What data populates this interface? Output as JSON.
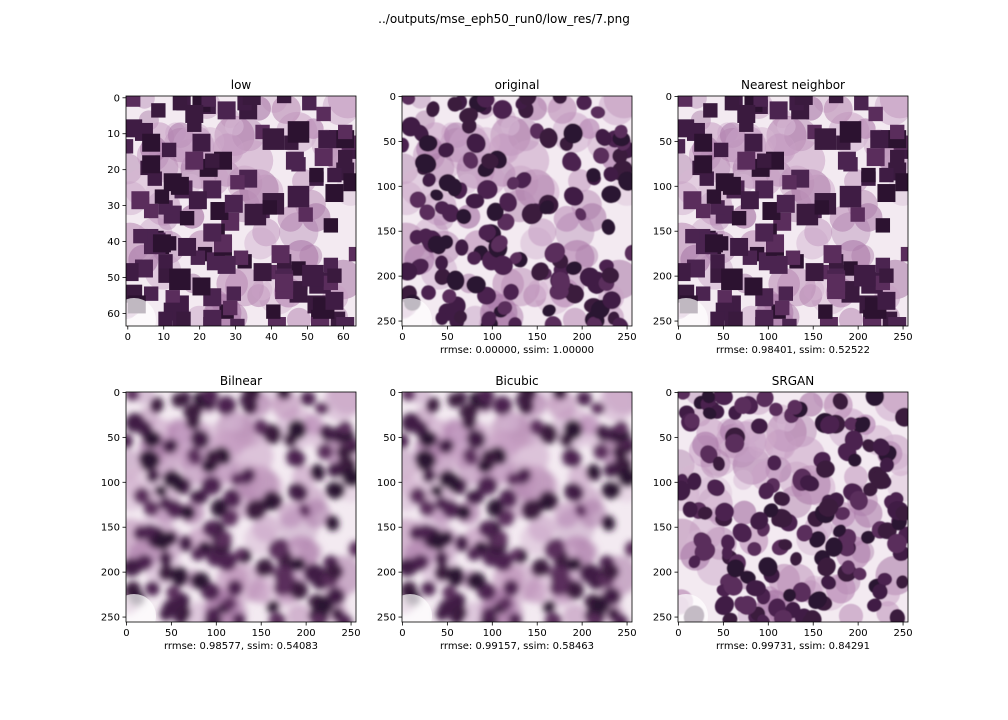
{
  "figure": {
    "suptitle": "../outputs/mse_eph50_run0/low_res/7.png"
  },
  "palette": {
    "background": "#f3eaf1",
    "nuclei": [
      "#2c1230",
      "#3a1a3e",
      "#4b2450",
      "#5a2d5c",
      "#3f1c44"
    ],
    "cytoplasm": [
      "#b889b4",
      "#c7a0c4",
      "#a877a6",
      "#d5b6d2"
    ],
    "edge_white": "#ffffff"
  },
  "panels": [
    {
      "title": "low",
      "caption": "",
      "xticks": [
        "0",
        "10",
        "20",
        "30",
        "40",
        "50",
        "60"
      ],
      "yticks": [
        "0",
        "10",
        "20",
        "30",
        "40",
        "50",
        "60"
      ],
      "axis_max": 64,
      "appearance": "pixelated"
    },
    {
      "title": "original",
      "caption": "rrmse: 0.00000, ssim: 1.00000",
      "xticks": [
        "0",
        "50",
        "100",
        "150",
        "200",
        "250"
      ],
      "yticks": [
        "0",
        "50",
        "100",
        "150",
        "200",
        "250"
      ],
      "axis_max": 256,
      "appearance": "sharp"
    },
    {
      "title": "Nearest neighbor",
      "caption": "rrmse: 0.98401, ssim: 0.52522",
      "xticks": [
        "0",
        "50",
        "100",
        "150",
        "200",
        "250"
      ],
      "yticks": [
        "0",
        "50",
        "100",
        "150",
        "200",
        "250"
      ],
      "axis_max": 256,
      "appearance": "pixelated"
    },
    {
      "title": "Bilnear",
      "caption": "rrmse: 0.98577, ssim: 0.54083",
      "xticks": [
        "0",
        "50",
        "100",
        "150",
        "200",
        "250"
      ],
      "yticks": [
        "0",
        "50",
        "100",
        "150",
        "200",
        "250"
      ],
      "axis_max": 256,
      "appearance": "blurred"
    },
    {
      "title": "Bicubic",
      "caption": "rrmse: 0.99157, ssim: 0.58463",
      "xticks": [
        "0",
        "50",
        "100",
        "150",
        "200",
        "250"
      ],
      "yticks": [
        "0",
        "50",
        "100",
        "150",
        "200",
        "250"
      ],
      "axis_max": 256,
      "appearance": "blurred"
    },
    {
      "title": "SRGAN",
      "caption": "rrmse: 0.99731, ssim: 0.84291",
      "xticks": [
        "0",
        "50",
        "100",
        "150",
        "200",
        "250"
      ],
      "yticks": [
        "0",
        "50",
        "100",
        "150",
        "200",
        "250"
      ],
      "axis_max": 256,
      "appearance": "sharp"
    }
  ]
}
